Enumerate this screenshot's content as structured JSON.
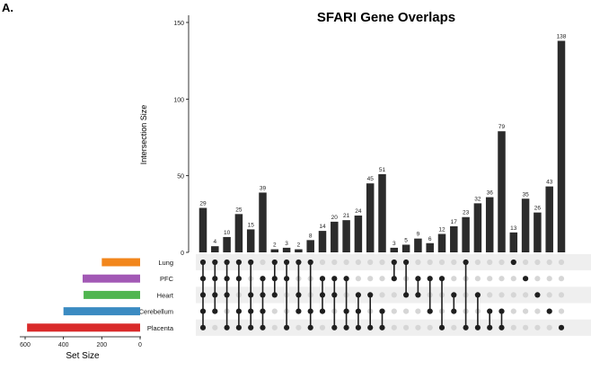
{
  "panel_label": "A.",
  "chart_data": {
    "type": "bar",
    "title": "SFARI Gene Overlaps",
    "ylabel": "Intersection Size",
    "ylim": [
      0,
      150
    ],
    "yticks": [
      0,
      50,
      100,
      150
    ],
    "set_size_xlabel": "Set Size",
    "set_size_xlim": [
      0,
      600
    ],
    "set_size_xticks": [
      600,
      400,
      200,
      0
    ],
    "sets": [
      {
        "name": "Lung",
        "size": 200,
        "color": "#f2861c"
      },
      {
        "name": "PFC",
        "size": 300,
        "color": "#a259b5"
      },
      {
        "name": "Heart",
        "size": 295,
        "color": "#4fb54f"
      },
      {
        "name": "Cerebellum",
        "size": 400,
        "color": "#3b8bc2"
      },
      {
        "name": "Placenta",
        "size": 590,
        "color": "#d92a2a"
      }
    ],
    "bar_color": "#2b2b2b",
    "intersections": [
      {
        "value": 29,
        "members": [
          0,
          1,
          2,
          3,
          4
        ]
      },
      {
        "value": 4,
        "members": [
          0,
          1,
          2,
          3
        ]
      },
      {
        "value": 10,
        "members": [
          0,
          1,
          2,
          4
        ]
      },
      {
        "value": 25,
        "members": [
          0,
          1,
          3,
          4
        ]
      },
      {
        "value": 15,
        "members": [
          0,
          2,
          3,
          4
        ]
      },
      {
        "value": 39,
        "members": [
          1,
          2,
          3,
          4
        ]
      },
      {
        "value": 2,
        "members": [
          0,
          1,
          2
        ]
      },
      {
        "value": 3,
        "members": [
          0,
          1,
          4
        ]
      },
      {
        "value": 2,
        "members": [
          0,
          2,
          3
        ]
      },
      {
        "value": 8,
        "members": [
          0,
          3,
          4
        ]
      },
      {
        "value": 14,
        "members": [
          1,
          2,
          3
        ]
      },
      {
        "value": 20,
        "members": [
          1,
          2,
          4
        ]
      },
      {
        "value": 21,
        "members": [
          1,
          3,
          4
        ]
      },
      {
        "value": 24,
        "members": [
          2,
          3,
          4
        ]
      },
      {
        "value": 45,
        "members": [
          2,
          4
        ]
      },
      {
        "value": 51,
        "members": [
          3,
          4
        ]
      },
      {
        "value": 3,
        "members": [
          0,
          1
        ]
      },
      {
        "value": 5,
        "members": [
          0,
          2
        ]
      },
      {
        "value": 9,
        "members": [
          1,
          2
        ]
      },
      {
        "value": 6,
        "members": [
          1,
          3
        ]
      },
      {
        "value": 12,
        "members": [
          1,
          4
        ]
      },
      {
        "value": 17,
        "members": [
          2,
          3
        ]
      },
      {
        "value": 23,
        "members": [
          0,
          4
        ]
      },
      {
        "value": 32,
        "members": [
          2,
          4
        ]
      },
      {
        "value": 36,
        "members": [
          3,
          4
        ]
      },
      {
        "value": 79,
        "members": [
          3,
          4
        ]
      },
      {
        "value": 13,
        "members": [
          0
        ]
      },
      {
        "value": 35,
        "members": [
          1
        ]
      },
      {
        "value": 26,
        "members": [
          2
        ]
      },
      {
        "value": 43,
        "members": [
          3
        ]
      },
      {
        "value": 138,
        "members": [
          4
        ]
      }
    ]
  }
}
